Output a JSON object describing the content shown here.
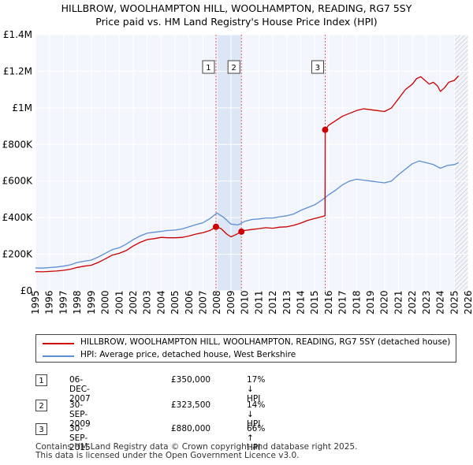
{
  "title_line1": "HILLBROW, WOOLHAMPTON HILL, WOOLHAMPTON, READING, RG7 5SY",
  "title_line2": "Price paid vs. HM Land Registry's House Price Index (HPI)",
  "chart_data": {
    "type": "line",
    "xlim": [
      1995,
      2026
    ],
    "ylim": [
      0,
      1400000
    ],
    "y_ticks": [
      {
        "value": 0,
        "label": "£0"
      },
      {
        "value": 200000,
        "label": "£200K"
      },
      {
        "value": 400000,
        "label": "£400K"
      },
      {
        "value": 600000,
        "label": "£600K"
      },
      {
        "value": 800000,
        "label": "£800K"
      },
      {
        "value": 1000000,
        "label": "£1M"
      },
      {
        "value": 1200000,
        "label": "£1.2M"
      },
      {
        "value": 1400000,
        "label": "£1.4M"
      }
    ],
    "x_ticks": [
      "1995",
      "1996",
      "1997",
      "1998",
      "1999",
      "2000",
      "2001",
      "2002",
      "2003",
      "2004",
      "2005",
      "2006",
      "2007",
      "2008",
      "2009",
      "2010",
      "2011",
      "2012",
      "2013",
      "2014",
      "2015",
      "2016",
      "2017",
      "2018",
      "2019",
      "2020",
      "2021",
      "2022",
      "2023",
      "2024",
      "2025",
      "2026"
    ],
    "grid": true,
    "series": [
      {
        "name": "HILLBROW, WOOLHAMPTON HILL, WOOLHAMPTON, READING, RG7 5SY (detached house)",
        "color": "#cc0000",
        "x": [
          1995.0,
          1995.5,
          1996.0,
          1996.5,
          1997.0,
          1997.5,
          1998.0,
          1998.5,
          1999.0,
          1999.5,
          2000.0,
          2000.5,
          2001.0,
          2001.5,
          2002.0,
          2002.5,
          2003.0,
          2003.5,
          2004.0,
          2004.5,
          2005.0,
          2005.5,
          2006.0,
          2006.5,
          2007.0,
          2007.5,
          2007.93,
          2008.3,
          2008.7,
          2009.0,
          2009.3,
          2009.75,
          2010.0,
          2010.5,
          2011.0,
          2011.5,
          2012.0,
          2012.5,
          2013.0,
          2013.5,
          2014.0,
          2014.5,
          2015.0,
          2015.5,
          2015.74,
          2015.75,
          2016.0,
          2016.5,
          2017.0,
          2017.5,
          2018.0,
          2018.5,
          2019.0,
          2019.5,
          2020.0,
          2020.5,
          2021.0,
          2021.5,
          2022.0,
          2022.3,
          2022.6,
          2022.9,
          2023.2,
          2023.5,
          2023.8,
          2024.0,
          2024.3,
          2024.6,
          2025.0,
          2025.3
        ],
        "values": [
          105000,
          104000,
          106000,
          108000,
          112000,
          118000,
          128000,
          135000,
          140000,
          155000,
          175000,
          195000,
          205000,
          220000,
          245000,
          265000,
          280000,
          285000,
          292000,
          290000,
          290000,
          292000,
          300000,
          310000,
          318000,
          330000,
          350000,
          340000,
          310000,
          295000,
          305000,
          323500,
          330000,
          335000,
          340000,
          345000,
          342000,
          348000,
          350000,
          358000,
          370000,
          385000,
          395000,
          405000,
          410000,
          880000,
          905000,
          930000,
          955000,
          970000,
          985000,
          995000,
          990000,
          985000,
          980000,
          1000000,
          1050000,
          1100000,
          1130000,
          1160000,
          1170000,
          1150000,
          1130000,
          1140000,
          1120000,
          1090000,
          1110000,
          1140000,
          1150000,
          1175000
        ]
      },
      {
        "name": "HPI: Average price, detached house, West Berkshire",
        "color": "#5b8fd4",
        "x": [
          1995.0,
          1995.5,
          1996.0,
          1996.5,
          1997.0,
          1997.5,
          1998.0,
          1998.5,
          1999.0,
          1999.5,
          2000.0,
          2000.5,
          2001.0,
          2001.5,
          2002.0,
          2002.5,
          2003.0,
          2003.5,
          2004.0,
          2004.5,
          2005.0,
          2005.5,
          2006.0,
          2006.5,
          2007.0,
          2007.5,
          2008.0,
          2008.5,
          2009.0,
          2009.5,
          2010.0,
          2010.5,
          2011.0,
          2011.5,
          2012.0,
          2012.5,
          2013.0,
          2013.5,
          2014.0,
          2014.5,
          2015.0,
          2015.5,
          2016.0,
          2016.5,
          2017.0,
          2017.5,
          2018.0,
          2018.5,
          2019.0,
          2019.5,
          2020.0,
          2020.5,
          2021.0,
          2021.5,
          2022.0,
          2022.5,
          2023.0,
          2023.5,
          2024.0,
          2024.5,
          2025.0,
          2025.3
        ],
        "values": [
          125000,
          124000,
          127000,
          130000,
          135000,
          142000,
          155000,
          162000,
          168000,
          185000,
          205000,
          225000,
          235000,
          255000,
          280000,
          300000,
          315000,
          320000,
          325000,
          330000,
          332000,
          338000,
          350000,
          362000,
          372000,
          395000,
          425000,
          400000,
          365000,
          360000,
          380000,
          390000,
          393000,
          398000,
          398000,
          405000,
          410000,
          420000,
          440000,
          455000,
          470000,
          495000,
          525000,
          550000,
          580000,
          600000,
          610000,
          605000,
          600000,
          595000,
          590000,
          600000,
          635000,
          665000,
          695000,
          710000,
          700000,
          690000,
          670000,
          685000,
          690000,
          700000
        ]
      }
    ],
    "sales": [
      {
        "label": "1",
        "year": 2007.93,
        "price": 350000
      },
      {
        "label": "2",
        "year": 2009.75,
        "price": 323500
      },
      {
        "label": "3",
        "year": 2015.75,
        "price": 880000
      }
    ],
    "hatched_from_year": 2025.0
  },
  "legend": {
    "property_label": "HILLBROW, WOOLHAMPTON HILL, WOOLHAMPTON, READING, RG7 5SY (detached house)",
    "hpi_label": "HPI: Average price, detached house, West Berkshire"
  },
  "transactions": [
    {
      "num": "1",
      "date": "06-DEC-2007",
      "price": "£350,000",
      "hpi": "17% ↓ HPI"
    },
    {
      "num": "2",
      "date": "30-SEP-2009",
      "price": "£323,500",
      "hpi": "14% ↓ HPI"
    },
    {
      "num": "3",
      "date": "30-SEP-2015",
      "price": "£880,000",
      "hpi": "66% ↑ HPI"
    }
  ],
  "footer": {
    "line1": "Contains HM Land Registry data © Crown copyright and database right 2025.",
    "line2": "This data is licensed under the Open Government Licence v3.0."
  }
}
